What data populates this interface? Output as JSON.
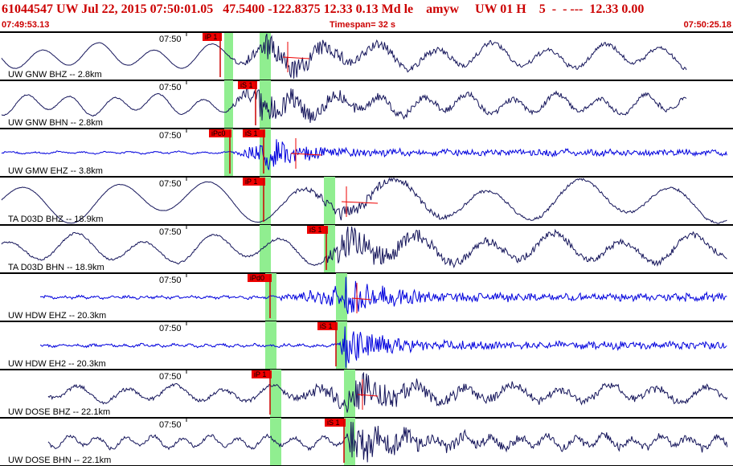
{
  "header": {
    "title": "61044547 UW Jul 22, 2015 07:50:01.05   47.5400 -122.8375 12.33 0.13 Md le    amyw     UW 01 H    5  -  - ---  12.33 0.00",
    "start_time": "07:49:53.13",
    "timespan": "Timespan=  32 s",
    "end_time": "07:50:25.18"
  },
  "colors": {
    "header_text": "#cc0000",
    "trace_dark": "#14145a",
    "trace_blue": "#0000dd",
    "pick_box": "#ee0000",
    "pick_window": "#90ee90"
  },
  "channels": [
    {
      "label": "UW GNW BHZ -- 2.8km",
      "time": "07:50",
      "color": "blue_dark",
      "picks": [
        {
          "text": "iP 1"
        }
      ]
    },
    {
      "label": "UW GNW BHN -- 2.8km",
      "time": "07:50",
      "color": "blue_dark",
      "picks": [
        {
          "text": "iS 1"
        }
      ]
    },
    {
      "label": "UW GMW EHZ -- 3.8km",
      "time": "07:50",
      "color": "blue",
      "picks": [
        {
          "text": "iPc0"
        },
        {
          "text": "iS 1"
        }
      ]
    },
    {
      "label": "TA D03D BHZ -- 18.9km",
      "time": "07:50",
      "color": "blue_dark",
      "picks": [
        {
          "text": "iP 1"
        }
      ]
    },
    {
      "label": "TA D03D BHN -- 18.9km",
      "time": "07:50",
      "color": "blue_dark",
      "picks": [
        {
          "text": "iS 1"
        }
      ]
    },
    {
      "label": "UW HDW EHZ -- 20.3km",
      "time": "07:50",
      "color": "blue",
      "picks": [
        {
          "text": "iPd0"
        }
      ]
    },
    {
      "label": "UW HDW EH2 -- 20.3km",
      "time": "07:50",
      "color": "blue",
      "picks": [
        {
          "text": "iS 1"
        }
      ]
    },
    {
      "label": "UW DOSE BHZ -- 22.1km",
      "time": "07:50",
      "color": "blue_dark",
      "picks": [
        {
          "text": "iP 1"
        }
      ]
    },
    {
      "label": "UW DOSE BHN -- 22.1km",
      "time": "07:50",
      "color": "blue_dark",
      "picks": [
        {
          "text": "iS 1"
        }
      ]
    }
  ]
}
